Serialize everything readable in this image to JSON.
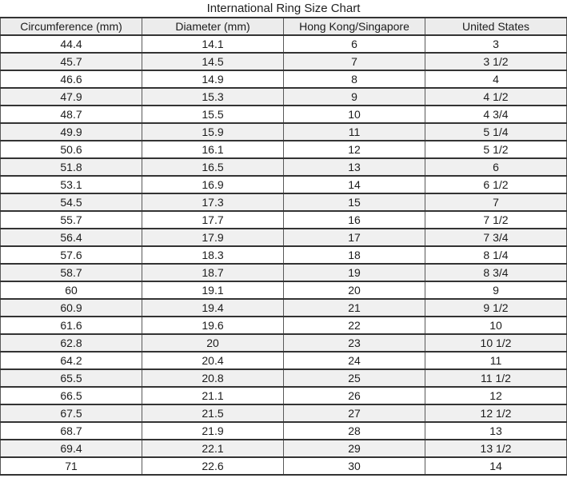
{
  "page_title": "International Ring Size Chart",
  "colors": {
    "header_bg": "#ececec",
    "stripe_bg": "#f0f0f0",
    "row_bg": "#ffffff",
    "border_horizontal": "#333333",
    "border_vertical": "#595959",
    "text": "#1c1c1c"
  },
  "chart_data": {
    "type": "table",
    "title": "International Ring Size Chart",
    "columns": [
      "Circumference (mm)",
      "Diameter (mm)",
      "Hong Kong/Singapore",
      "United States"
    ],
    "rows": [
      [
        "44.4",
        "14.1",
        "6",
        "3"
      ],
      [
        "45.7",
        "14.5",
        "7",
        "3 1/2"
      ],
      [
        "46.6",
        "14.9",
        "8",
        "4"
      ],
      [
        "47.9",
        "15.3",
        "9",
        "4 1/2"
      ],
      [
        "48.7",
        "15.5",
        "10",
        "4 3/4"
      ],
      [
        "49.9",
        "15.9",
        "11",
        "5 1/4"
      ],
      [
        "50.6",
        "16.1",
        "12",
        "5 1/2"
      ],
      [
        "51.8",
        "16.5",
        "13",
        "6"
      ],
      [
        "53.1",
        "16.9",
        "14",
        "6 1/2"
      ],
      [
        "54.5",
        "17.3",
        "15",
        "7"
      ],
      [
        "55.7",
        "17.7",
        "16",
        "7 1/2"
      ],
      [
        "56.4",
        "17.9",
        "17",
        "7 3/4"
      ],
      [
        "57.6",
        "18.3",
        "18",
        "8 1/4"
      ],
      [
        "58.7",
        "18.7",
        "19",
        "8 3/4"
      ],
      [
        "60",
        "19.1",
        "20",
        "9"
      ],
      [
        "60.9",
        "19.4",
        "21",
        "9 1/2"
      ],
      [
        "61.6",
        "19.6",
        "22",
        "10"
      ],
      [
        "62.8",
        "20",
        "23",
        "10 1/2"
      ],
      [
        "64.2",
        "20.4",
        "24",
        "11"
      ],
      [
        "65.5",
        "20.8",
        "25",
        "11 1/2"
      ],
      [
        "66.5",
        "21.1",
        "26",
        "12"
      ],
      [
        "67.5",
        "21.5",
        "27",
        "12 1/2"
      ],
      [
        "68.7",
        "21.9",
        "28",
        "13"
      ],
      [
        "69.4",
        "22.1",
        "29",
        "13 1/2"
      ],
      [
        "71",
        "22.6",
        "30",
        "14"
      ]
    ]
  }
}
